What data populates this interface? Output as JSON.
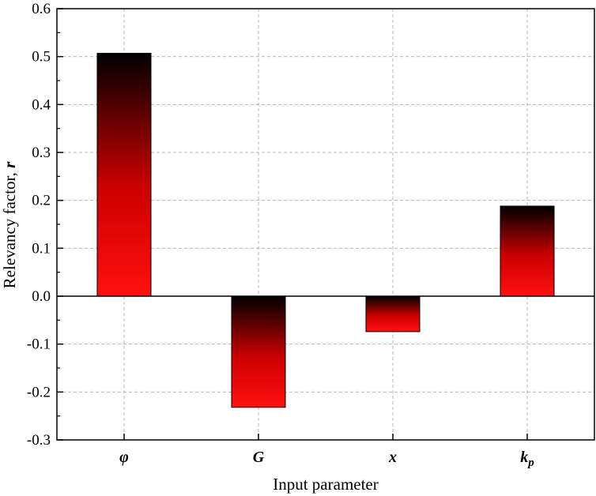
{
  "chart_data": {
    "type": "bar",
    "categories": [
      "φ",
      "G",
      "x",
      "k"
    ],
    "category_subscripts": [
      "",
      "",
      "",
      "p"
    ],
    "values": [
      0.507,
      -0.232,
      -0.074,
      0.188
    ],
    "title": "",
    "xlabel": "Input parameter",
    "ylabel_prefix": "Relevancy factor, ",
    "ylabel_symbol": "r",
    "ylim": [
      -0.3,
      0.6
    ],
    "yticks": [
      -0.3,
      -0.2,
      -0.1,
      0.0,
      0.1,
      0.2,
      0.3,
      0.4,
      0.5,
      0.6
    ],
    "ytick_labels": [
      "-0.3",
      "-0.2",
      "-0.1",
      "0.0",
      "0.1",
      "0.2",
      "0.3",
      "0.4",
      "0.5",
      "0.6"
    ],
    "grid": true,
    "legend": "none",
    "bar_gradient": {
      "dark": "#000000",
      "mid": "#cc0000",
      "light": "#ff1010"
    }
  }
}
